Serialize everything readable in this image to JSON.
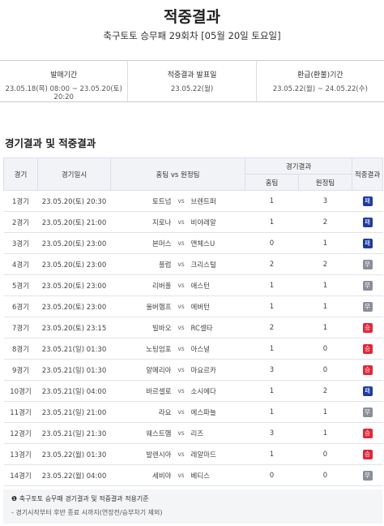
{
  "header": {
    "title": "적중결과",
    "subtitle": "축구토토 승무패 29회차 [05월 20일 토요일]"
  },
  "info": [
    {
      "label": "발매기간",
      "value": "23.05.18(목) 08:00 ~ 23.05.20(토) 20:20"
    },
    {
      "label": "적중결과 발표일",
      "value": "23.05.22(월)"
    },
    {
      "label": "환급(환불)기간",
      "value": "23.05.22(월) ~ 24.05.22(수)"
    }
  ],
  "section_title": "경기결과 및 적중결과",
  "table": {
    "columns": {
      "game": "경기",
      "datetime": "경기일시",
      "matchup": "홈팀 vs 원정팀",
      "result": "경기결과",
      "home": "홈팀",
      "away": "원정팀",
      "hit": "적중결과"
    },
    "vs": "vs",
    "rows": [
      {
        "game": "1경기",
        "datetime": "23.05.20(토) 20:30",
        "home_team": "토트넘",
        "away_team": "브렌트퍼",
        "home_score": 1,
        "away_score": 3,
        "hit": "패",
        "badge_color": "#1f3aa0"
      },
      {
        "game": "2경기",
        "datetime": "23.05.20(토) 21:00",
        "home_team": "지로나",
        "away_team": "비야레알",
        "home_score": 1,
        "away_score": 2,
        "hit": "패",
        "badge_color": "#1f3aa0"
      },
      {
        "game": "3경기",
        "datetime": "23.05.20(토) 23:00",
        "home_team": "본머스",
        "away_team": "맨체스U",
        "home_score": 0,
        "away_score": 1,
        "hit": "패",
        "badge_color": "#1f3aa0"
      },
      {
        "game": "4경기",
        "datetime": "23.05.20(토) 23:00",
        "home_team": "풀럼",
        "away_team": "크리스털",
        "home_score": 2,
        "away_score": 2,
        "hit": "무",
        "badge_color": "#8a8f99"
      },
      {
        "game": "5경기",
        "datetime": "23.05.20(토) 23:00",
        "home_team": "리버풀",
        "away_team": "애스턴",
        "home_score": 1,
        "away_score": 1,
        "hit": "무",
        "badge_color": "#8a8f99"
      },
      {
        "game": "6경기",
        "datetime": "23.05.20(토) 23:00",
        "home_team": "울버햄프",
        "away_team": "에버턴",
        "home_score": 1,
        "away_score": 1,
        "hit": "무",
        "badge_color": "#8a8f99"
      },
      {
        "game": "7경기",
        "datetime": "23.05.20(토) 23:15",
        "home_team": "빌바오",
        "away_team": "RC셀타",
        "home_score": 2,
        "away_score": 1,
        "hit": "승",
        "badge_color": "#e0283a"
      },
      {
        "game": "8경기",
        "datetime": "23.05.21(일) 01:30",
        "home_team": "노팅엄포",
        "away_team": "아스널",
        "home_score": 1,
        "away_score": 0,
        "hit": "승",
        "badge_color": "#e0283a"
      },
      {
        "game": "9경기",
        "datetime": "23.05.21(일) 01:30",
        "home_team": "알메리아",
        "away_team": "마요르카",
        "home_score": 3,
        "away_score": 0,
        "hit": "승",
        "badge_color": "#e0283a"
      },
      {
        "game": "10경기",
        "datetime": "23.05.21(일) 04:00",
        "home_team": "바르셀로",
        "away_team": "소시에다",
        "home_score": 1,
        "away_score": 2,
        "hit": "패",
        "badge_color": "#1f3aa0"
      },
      {
        "game": "11경기",
        "datetime": "23.05.21(일) 21:00",
        "home_team": "라요",
        "away_team": "에스파뇰",
        "home_score": 1,
        "away_score": 1,
        "hit": "무",
        "badge_color": "#8a8f99"
      },
      {
        "game": "12경기",
        "datetime": "23.05.21(일) 21:30",
        "home_team": "웨스트햄",
        "away_team": "리즈",
        "home_score": 3,
        "away_score": 1,
        "hit": "승",
        "badge_color": "#e0283a"
      },
      {
        "game": "13경기",
        "datetime": "23.05.22(월) 01:30",
        "home_team": "발렌시아",
        "away_team": "레알마드",
        "home_score": 1,
        "away_score": 0,
        "hit": "승",
        "badge_color": "#e0283a"
      },
      {
        "game": "14경기",
        "datetime": "23.05.22(월) 04:00",
        "home_team": "세비야",
        "away_team": "베티스",
        "home_score": 0,
        "away_score": 0,
        "hit": "무",
        "badge_color": "#8a8f99"
      }
    ]
  },
  "note": {
    "title": "축구토토 승무패 경기결과 및 적중결과 적용기준",
    "items": [
      "- 경기시작부터 후반 종료 시까지(연장전/승부차기 제외)"
    ]
  }
}
